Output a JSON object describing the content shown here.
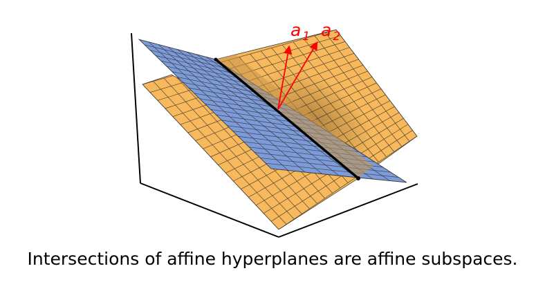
{
  "caption": "Intersections of affine hyperplanes are affine subspaces.",
  "vectors": [
    {
      "label": "a",
      "subscript": "1"
    },
    {
      "label": "a",
      "subscript": "2"
    }
  ],
  "colors": {
    "plane_orange": "#f7b95c",
    "plane_blue": "#7d9bd8",
    "vectors": "#ff0000",
    "axes": "#000000",
    "grid": "#2a2a2a"
  }
}
